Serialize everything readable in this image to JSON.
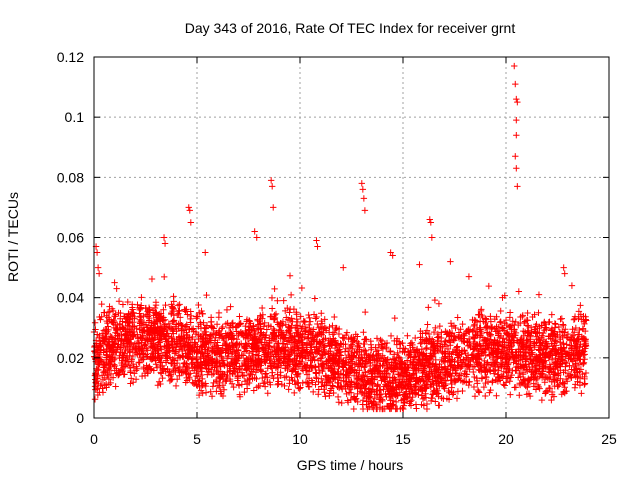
{
  "chart_data": {
    "type": "scatter",
    "title": "Day 343 of 2016, Rate Of TEC Index for receiver grnt",
    "xlabel": "GPS time / hours",
    "ylabel": "ROTI / TECUs",
    "xlim": [
      0,
      25
    ],
    "ylim": [
      0,
      0.12
    ],
    "x_ticks": [
      "0",
      "5",
      "10",
      "15",
      "20",
      "25"
    ],
    "y_ticks": [
      "0",
      "0.02",
      "0.04",
      "0.06",
      "0.08",
      "0.1",
      "0.12"
    ],
    "grid": true,
    "marker": "+",
    "series": [
      {
        "name": "ROTI",
        "color": "#ff0000",
        "x": [
          0.1,
          0.15,
          0.2,
          0.25,
          4.6,
          4.65,
          4.7,
          8.6,
          8.65,
          8.7,
          13.0,
          13.05,
          13.1,
          13.15,
          16.3,
          16.35,
          16.4,
          20.4,
          20.45,
          20.5,
          20.55,
          20.5,
          20.5,
          20.45,
          20.5,
          20.55,
          7.8,
          7.9,
          10.8,
          10.85,
          3.4,
          3.45,
          5.4,
          12.1,
          14.4,
          14.5,
          15.8,
          17.3,
          18.2,
          21.6,
          22.8,
          22.85,
          23.2,
          1.0,
          1.1
        ],
        "y": [
          0.057,
          0.055,
          0.05,
          0.048,
          0.07,
          0.069,
          0.065,
          0.079,
          0.077,
          0.07,
          0.078,
          0.076,
          0.073,
          0.069,
          0.066,
          0.065,
          0.06,
          0.117,
          0.111,
          0.106,
          0.105,
          0.099,
          0.094,
          0.087,
          0.083,
          0.077,
          0.062,
          0.06,
          0.059,
          0.057,
          0.06,
          0.058,
          0.055,
          0.05,
          0.055,
          0.054,
          0.051,
          0.052,
          0.047,
          0.041,
          0.05,
          0.048,
          0.044,
          0.045,
          0.043
        ]
      }
    ],
    "band": {
      "description_values": {
        "start_hour": 0,
        "end_hour": 23.9,
        "typical_min": 0.005,
        "typical_max": 0.035
      }
    }
  }
}
